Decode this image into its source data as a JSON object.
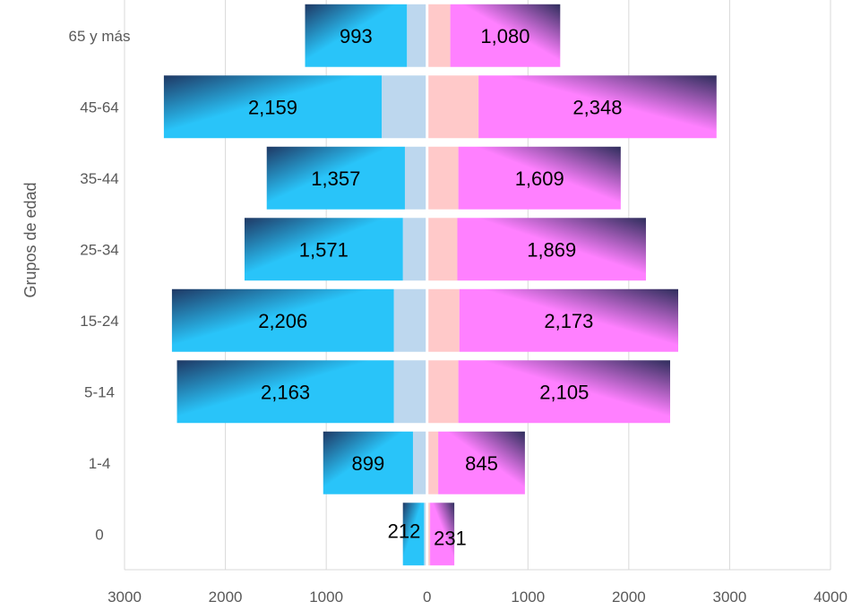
{
  "chart_data": {
    "type": "bar",
    "orientation": "horizontal",
    "style": "population-pyramid",
    "ylabel": "Grupos de edad",
    "xlabel": "",
    "categories": [
      "0",
      "1-4",
      "5-14",
      "15-24",
      "25-34",
      "35-44",
      "45-64",
      "65 y más"
    ],
    "x_ticks": [
      "3000",
      "2000",
      "1000",
      "0",
      "1000",
      "2000",
      "3000",
      "4000"
    ],
    "xlim": [
      -3000,
      4000
    ],
    "grid": true,
    "series": [
      {
        "side": "left",
        "values": [
          212,
          899,
          2163,
          2206,
          1571,
          1357,
          2159,
          993
        ],
        "labels": [
          "212",
          "899",
          "2,163",
          "2,206",
          "1,571",
          "1,357",
          "2,159",
          "993"
        ],
        "extent": [
          240,
          1030,
          2480,
          2530,
          1810,
          1590,
          2610,
          1210
        ],
        "inner_extent": [
          30,
          140,
          330,
          330,
          240,
          220,
          450,
          200
        ],
        "color": "#29C4F9",
        "dark_color": "#1F3864",
        "inner_color": "#BDD7EE"
      },
      {
        "side": "right",
        "values": [
          231,
          845,
          2105,
          2173,
          1869,
          1609,
          2348,
          1080
        ],
        "labels": [
          "231",
          "845",
          "2,105",
          "2,173",
          "1,869",
          "1,609",
          "2,348",
          "1,080"
        ],
        "extent": [
          270,
          970,
          2410,
          2490,
          2170,
          1920,
          2870,
          1320
        ],
        "inner_extent": [
          30,
          110,
          310,
          320,
          300,
          310,
          510,
          230
        ],
        "color": "#FF80FF",
        "dark_color": "#2E2E5C",
        "inner_color": "#FFC9C9"
      }
    ]
  }
}
